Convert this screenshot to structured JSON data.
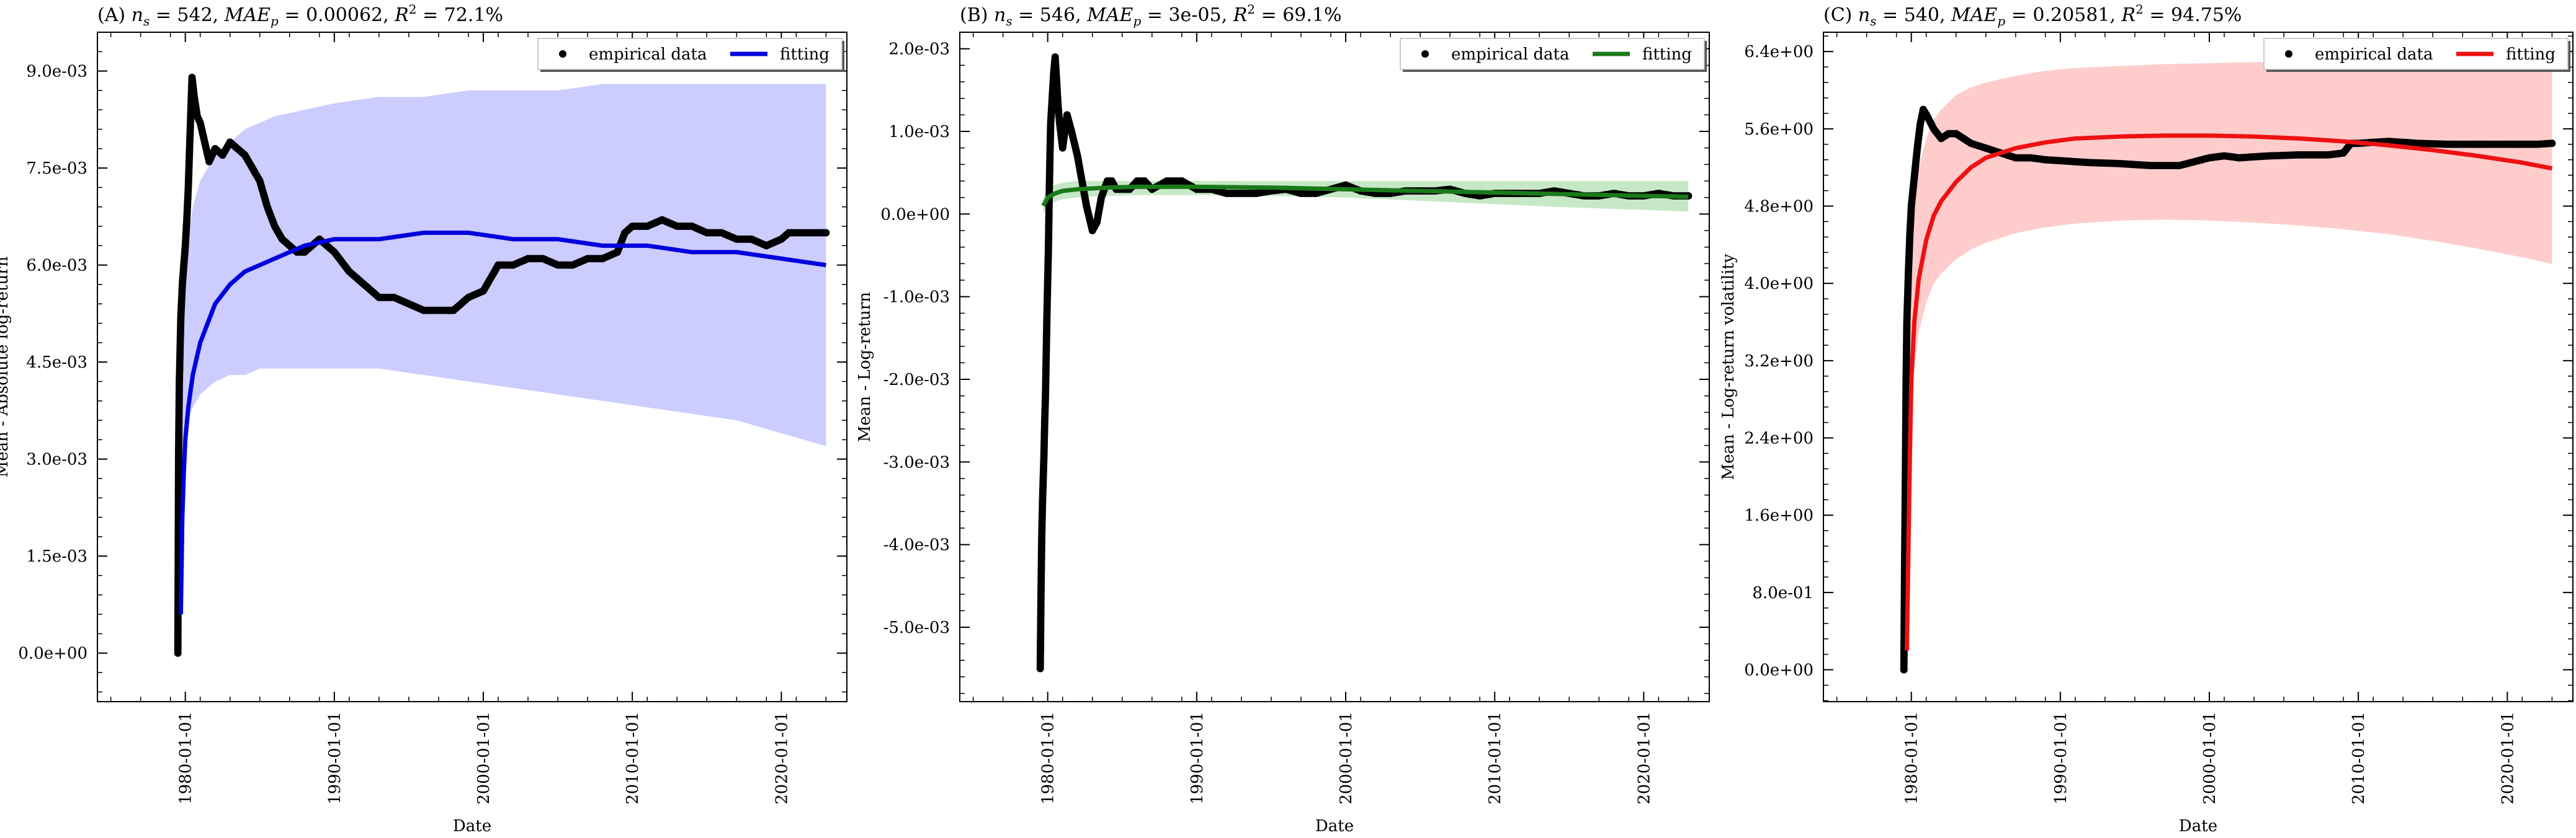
{
  "figure": {
    "background": "#ffffff"
  },
  "chart_data": [
    {
      "panel": "A",
      "type": "scatter",
      "title": "(A) n_s = 542, MAE_p = 0.00062, R^2 = 72.1%",
      "title_parts": {
        "prefix": "(A)",
        "ns": "542",
        "mae": "0.00062",
        "r2": "72.1%"
      },
      "xlabel": "Date",
      "ylabel": "Mean - Absolute log-return",
      "x_ticks": [
        "1980-01-01",
        "1990-01-01",
        "2000-01-01",
        "2010-01-01",
        "2020-01-01"
      ],
      "y_ticks": [
        0.0,
        0.0015,
        0.003,
        0.0045,
        0.006,
        0.0075,
        0.009
      ],
      "y_tick_labels": [
        "0.0e+00",
        "1.5e-03",
        "3.0e-03",
        "4.5e-03",
        "6.0e-03",
        "7.5e-03",
        "9.0e-03"
      ],
      "xlim": [
        1974.1,
        2024.4
      ],
      "ylim": [
        -0.00075,
        0.0096
      ],
      "legend": {
        "position": "top-right",
        "entries": [
          "empirical data",
          "fitting"
        ]
      },
      "fit_color": "#0000dd",
      "band_color": "#ccccff",
      "empirical": {
        "x": [
          1979.5,
          1979.55,
          1979.6,
          1979.7,
          1979.8,
          1979.9,
          1980.0,
          1980.1,
          1980.2,
          1980.3,
          1980.45,
          1980.6,
          1980.8,
          1981.0,
          1981.3,
          1981.6,
          1982.0,
          1982.5,
          1983.0,
          1983.5,
          1984.0,
          1984.5,
          1985.0,
          1985.5,
          1986.0,
          1986.5,
          1987.0,
          1987.5,
          1988.0,
          1988.5,
          1989.0,
          1990.0,
          1991.0,
          1992.0,
          1993.0,
          1994.0,
          1995.0,
          1996.0,
          1997.0,
          1998.0,
          1999.0,
          2000.0,
          2000.5,
          2001.0,
          2002.0,
          2003.0,
          2004.0,
          2005.0,
          2006.0,
          2007.0,
          2008.0,
          2009.0,
          2009.5,
          2010.0,
          2011.0,
          2012.0,
          2013.0,
          2014.0,
          2015.0,
          2016.0,
          2017.0,
          2018.0,
          2019.0,
          2020.0,
          2020.5,
          2021.0,
          2022.0,
          2023.0
        ],
        "y": [
          0.0,
          0.0031,
          0.0042,
          0.0052,
          0.0057,
          0.006,
          0.0063,
          0.0067,
          0.0072,
          0.0079,
          0.0089,
          0.0086,
          0.0083,
          0.0082,
          0.0079,
          0.0076,
          0.0078,
          0.0077,
          0.0079,
          0.0078,
          0.0077,
          0.0075,
          0.0073,
          0.0069,
          0.0066,
          0.0064,
          0.0063,
          0.0062,
          0.0062,
          0.0063,
          0.0064,
          0.0062,
          0.0059,
          0.0057,
          0.0055,
          0.0055,
          0.0054,
          0.0053,
          0.0053,
          0.0053,
          0.0055,
          0.0056,
          0.0058,
          0.006,
          0.006,
          0.0061,
          0.0061,
          0.006,
          0.006,
          0.0061,
          0.0061,
          0.0062,
          0.0065,
          0.0066,
          0.0066,
          0.0067,
          0.0066,
          0.0066,
          0.0065,
          0.0065,
          0.0064,
          0.0064,
          0.0063,
          0.0064,
          0.0065,
          0.0065,
          0.0065,
          0.0065
        ]
      },
      "fit": {
        "x": [
          1979.7,
          1979.8,
          1979.9,
          1980.0,
          1980.2,
          1980.5,
          1981.0,
          1981.5,
          1982.0,
          1983.0,
          1984.0,
          1985.0,
          1986.0,
          1988.0,
          1990.0,
          1993.0,
          1996.0,
          1999.0,
          2002.0,
          2005.0,
          2008.0,
          2011.0,
          2014.0,
          2017.0,
          2020.0,
          2023.0
        ],
        "y": [
          0.0006,
          0.0021,
          0.0028,
          0.0033,
          0.0038,
          0.0043,
          0.0048,
          0.0051,
          0.0054,
          0.0057,
          0.0059,
          0.006,
          0.0061,
          0.0063,
          0.0064,
          0.0064,
          0.0065,
          0.0065,
          0.0064,
          0.0064,
          0.0063,
          0.0063,
          0.0062,
          0.0062,
          0.0061,
          0.006
        ]
      },
      "band_upper": [
        0.0028,
        0.0042,
        0.0052,
        0.0058,
        0.0064,
        0.0069,
        0.0073,
        0.0075,
        0.0077,
        0.0079,
        0.0081,
        0.0082,
        0.0083,
        0.0084,
        0.0085,
        0.0086,
        0.0086,
        0.0087,
        0.0087,
        0.0087,
        0.0088,
        0.0088,
        0.0088,
        0.0088,
        0.0088,
        0.0088
      ],
      "band_lower": [
        0.0006,
        0.0023,
        0.0029,
        0.0033,
        0.0036,
        0.0038,
        0.004,
        0.0041,
        0.0042,
        0.0043,
        0.0043,
        0.0044,
        0.0044,
        0.0044,
        0.0044,
        0.0044,
        0.0043,
        0.0042,
        0.0041,
        0.004,
        0.0039,
        0.0038,
        0.0037,
        0.0036,
        0.0034,
        0.0032
      ]
    },
    {
      "panel": "B",
      "type": "scatter",
      "title": "(B) n_s = 546, MAE_p = 3e-05, R^2 = 69.1%",
      "title_parts": {
        "prefix": "(B)",
        "ns": "546",
        "mae": "3e-05",
        "r2": "69.1%"
      },
      "xlabel": "Date",
      "ylabel": "Mean - Log-return",
      "x_ticks": [
        "1980-01-01",
        "1990-01-01",
        "2000-01-01",
        "2010-01-01",
        "2020-01-01"
      ],
      "y_ticks": [
        -0.005,
        -0.004,
        -0.003,
        -0.002,
        -0.001,
        0.0,
        0.001,
        0.002
      ],
      "y_tick_labels": [
        "-5.0e-03",
        "-4.0e-03",
        "-3.0e-03",
        "-2.0e-03",
        "-1.0e-03",
        "0.0e+00",
        "1.0e-03",
        "2.0e-03"
      ],
      "xlim": [
        1974.1,
        2024.4
      ],
      "ylim": [
        -0.0059,
        0.0022
      ],
      "legend": {
        "position": "top-right",
        "entries": [
          "empirical data",
          "fitting"
        ]
      },
      "fit_color": "#1a7a1a",
      "band_color": "#c6e8c6",
      "empirical": {
        "x": [
          1979.5,
          1979.55,
          1979.6,
          1979.65,
          1979.7,
          1979.75,
          1979.8,
          1979.85,
          1979.9,
          1979.95,
          1980.0,
          1980.05,
          1980.1,
          1980.15,
          1980.2,
          1980.3,
          1980.4,
          1980.5,
          1980.6,
          1980.7,
          1980.8,
          1981.0,
          1981.3,
          1981.6,
          1982.0,
          1982.3,
          1982.6,
          1983.0,
          1983.3,
          1983.6,
          1984.0,
          1984.3,
          1984.6,
          1985.0,
          1985.5,
          1986.0,
          1986.5,
          1987.0,
          1988.0,
          1989.0,
          1990.0,
          1991.0,
          1992.0,
          1993.0,
          1994.0,
          1995.0,
          1996.0,
          1997.0,
          1998.0,
          1999.0,
          2000.0,
          2001.0,
          2002.0,
          2003.0,
          2004.0,
          2005.0,
          2006.0,
          2007.0,
          2008.0,
          2009.0,
          2010.0,
          2011.0,
          2012.0,
          2013.0,
          2014.0,
          2015.0,
          2016.0,
          2017.0,
          2018.0,
          2019.0,
          2020.0,
          2021.0,
          2022.0,
          2023.0
        ],
        "y": [
          -0.0055,
          -0.0046,
          -0.0039,
          -0.0035,
          -0.0032,
          -0.0029,
          -0.0025,
          -0.0022,
          -0.0017,
          -0.0012,
          -0.0008,
          -0.0004,
          0.0002,
          0.0007,
          0.0011,
          0.0014,
          0.0017,
          0.0019,
          0.0016,
          0.0013,
          0.0011,
          0.0008,
          0.0012,
          0.001,
          0.0007,
          0.0004,
          0.0001,
          -0.0002,
          -0.0001,
          0.0002,
          0.0004,
          0.0004,
          0.0003,
          0.0003,
          0.0003,
          0.0004,
          0.0004,
          0.0003,
          0.0004,
          0.0004,
          0.0003,
          0.0003,
          0.00025,
          0.00025,
          0.00025,
          0.00028,
          0.0003,
          0.00025,
          0.00025,
          0.0003,
          0.00035,
          0.00028,
          0.00025,
          0.00025,
          0.00028,
          0.00028,
          0.00028,
          0.0003,
          0.00025,
          0.00022,
          0.00025,
          0.00025,
          0.00025,
          0.00025,
          0.00028,
          0.00025,
          0.00022,
          0.00022,
          0.00025,
          0.00022,
          0.00022,
          0.00025,
          0.00022,
          0.00022
        ]
      },
      "fit": {
        "x": [
          1979.7,
          1980.0,
          1980.5,
          1981.0,
          1982.0,
          1984.0,
          1986.0,
          1990.0,
          1995.0,
          2000.0,
          2005.0,
          2010.0,
          2015.0,
          2020.0,
          2023.0
        ],
        "y": [
          0.0001,
          0.0002,
          0.00025,
          0.00028,
          0.0003,
          0.00032,
          0.00033,
          0.00033,
          0.00032,
          0.0003,
          0.00028,
          0.00026,
          0.00024,
          0.00022,
          0.00021
        ]
      },
      "band_upper": [
        0.0002,
        0.0003,
        0.00035,
        0.00038,
        0.0004,
        0.0004,
        0.0004,
        0.0004,
        0.0004,
        0.0004,
        0.0004,
        0.0004,
        0.0004,
        0.0004,
        0.0004
      ],
      "band_lower": [
        0.0,
        0.0001,
        0.00015,
        0.00018,
        0.0002,
        0.00022,
        0.00023,
        0.00023,
        0.00022,
        0.0002,
        0.00016,
        0.00012,
        8e-05,
        5e-05,
        3e-05
      ]
    },
    {
      "panel": "C",
      "type": "scatter",
      "title": "(C) n_s = 540, MAE_p = 0.20581, R^2 = 94.75%",
      "title_parts": {
        "prefix": "(C)",
        "ns": "540",
        "mae": "0.20581",
        "r2": "94.75%"
      },
      "xlabel": "Date",
      "ylabel": "Mean - Log-return volatility",
      "x_ticks": [
        "1980-01-01",
        "1990-01-01",
        "2000-01-01",
        "2010-01-01",
        "2020-01-01"
      ],
      "y_ticks": [
        0.0,
        0.8,
        1.6,
        2.4,
        3.2,
        4.0,
        4.8,
        5.6,
        6.4
      ],
      "y_tick_labels": [
        "0.0e+00",
        "8.0e-01",
        "1.6e+00",
        "2.4e+00",
        "3.2e+00",
        "4.0e+00",
        "4.8e+00",
        "5.6e+00",
        "6.4e+00"
      ],
      "xlim": [
        1974.1,
        2024.4
      ],
      "ylim": [
        -0.33,
        6.6
      ],
      "legend": {
        "position": "top-right",
        "entries": [
          "empirical data",
          "fitting"
        ]
      },
      "fit_color": "#ee1111",
      "band_color": "#ffcccc",
      "empirical": {
        "x": [
          1979.5,
          1979.55,
          1979.6,
          1979.65,
          1979.7,
          1979.8,
          1979.9,
          1980.0,
          1980.2,
          1980.4,
          1980.6,
          1980.8,
          1981.0,
          1981.5,
          1982.0,
          1982.5,
          1983.0,
          1983.5,
          1984.0,
          1985.0,
          1986.0,
          1987.0,
          1988.0,
          1989.0,
          1990.0,
          1992.0,
          1994.0,
          1996.0,
          1998.0,
          2000.0,
          2001.0,
          2002.0,
          2004.0,
          2006.0,
          2008.0,
          2009.0,
          2009.5,
          2010.0,
          2012.0,
          2014.0,
          2016.0,
          2018.0,
          2020.0,
          2022.0,
          2023.0
        ],
        "y": [
          0.0,
          1.1,
          2.0,
          3.0,
          3.6,
          4.1,
          4.5,
          4.8,
          5.1,
          5.4,
          5.65,
          5.8,
          5.75,
          5.6,
          5.5,
          5.55,
          5.55,
          5.5,
          5.45,
          5.4,
          5.35,
          5.3,
          5.3,
          5.28,
          5.27,
          5.25,
          5.24,
          5.22,
          5.22,
          5.3,
          5.32,
          5.3,
          5.32,
          5.33,
          5.33,
          5.35,
          5.45,
          5.45,
          5.47,
          5.45,
          5.44,
          5.44,
          5.44,
          5.44,
          5.45
        ]
      },
      "fit": {
        "x": [
          1979.7,
          1979.8,
          1979.9,
          1980.0,
          1980.2,
          1980.5,
          1981.0,
          1981.5,
          1982.0,
          1983.0,
          1984.0,
          1985.0,
          1987.0,
          1989.0,
          1991.0,
          1994.0,
          1997.0,
          2000.0,
          2003.0,
          2006.0,
          2009.0,
          2012.0,
          2015.0,
          2018.0,
          2021.0,
          2023.0
        ],
        "y": [
          0.2,
          1.2,
          2.2,
          3.0,
          3.6,
          4.05,
          4.45,
          4.7,
          4.85,
          5.05,
          5.2,
          5.3,
          5.4,
          5.46,
          5.5,
          5.52,
          5.53,
          5.53,
          5.52,
          5.5,
          5.47,
          5.43,
          5.38,
          5.32,
          5.25,
          5.19
        ]
      },
      "band_upper": [
        0.5,
        2.5,
        3.6,
        4.3,
        4.8,
        5.2,
        5.5,
        5.7,
        5.8,
        5.95,
        6.03,
        6.08,
        6.15,
        6.2,
        6.23,
        6.25,
        6.27,
        6.28,
        6.29,
        6.3,
        6.3,
        6.3,
        6.3,
        6.3,
        6.3,
        6.3
      ],
      "band_lower": [
        0.0,
        0.8,
        1.8,
        2.6,
        3.1,
        3.5,
        3.8,
        4.0,
        4.1,
        4.25,
        4.35,
        4.42,
        4.52,
        4.58,
        4.62,
        4.65,
        4.66,
        4.65,
        4.63,
        4.6,
        4.56,
        4.51,
        4.44,
        4.36,
        4.27,
        4.2
      ]
    }
  ]
}
